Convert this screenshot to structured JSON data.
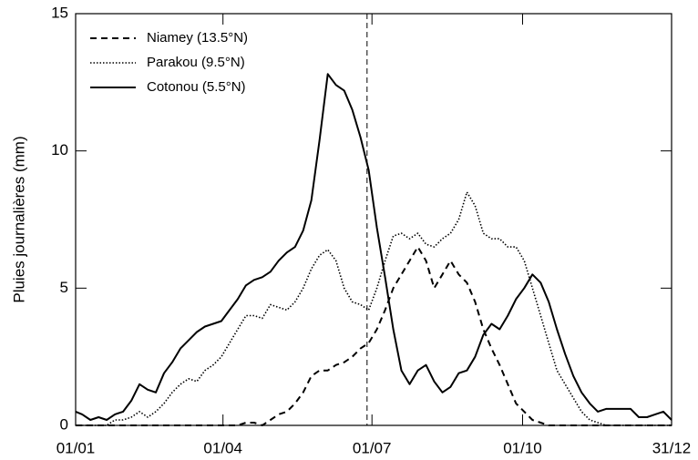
{
  "chart_data": {
    "type": "line",
    "ylabel": "Pluies journalières (mm)",
    "x": [
      1,
      5,
      10,
      15,
      20,
      25,
      30,
      35,
      40,
      45,
      50,
      55,
      60,
      65,
      70,
      75,
      80,
      85,
      90,
      95,
      100,
      105,
      110,
      115,
      120,
      125,
      130,
      135,
      140,
      145,
      150,
      155,
      160,
      165,
      170,
      175,
      180,
      185,
      190,
      195,
      200,
      205,
      210,
      215,
      220,
      225,
      230,
      235,
      240,
      245,
      250,
      255,
      260,
      265,
      270,
      275,
      280,
      285,
      290,
      295,
      300,
      305,
      310,
      315,
      320,
      325,
      330,
      335,
      340,
      345,
      350,
      355,
      360,
      365
    ],
    "series": [
      {
        "name": "Niamey (13.5°N)",
        "color": "#000000",
        "dash": "dashed",
        "values": [
          0,
          0,
          0,
          0,
          0,
          0,
          0,
          0,
          0,
          0,
          0,
          0,
          0,
          0,
          0,
          0,
          0,
          0,
          0,
          0,
          0,
          0.1,
          0.1,
          0,
          0.2,
          0.4,
          0.5,
          0.8,
          1.2,
          1.8,
          2,
          2,
          2.2,
          2.3,
          2.5,
          2.8,
          3,
          3.5,
          4.2,
          5,
          5.5,
          6,
          6.5,
          6,
          5,
          5.5,
          6,
          5.5,
          5.2,
          4.5,
          3.5,
          2.8,
          2.2,
          1.5,
          0.8,
          0.5,
          0.2,
          0.1,
          0,
          0,
          0,
          0,
          0,
          0,
          0,
          0,
          0,
          0,
          0,
          0,
          0,
          0,
          0,
          0
        ]
      },
      {
        "name": "Parakou (9.5°N)",
        "color": "#000000",
        "dash": "dotted",
        "values": [
          0,
          0,
          0,
          0,
          0,
          0.2,
          0.2,
          0.3,
          0.5,
          0.3,
          0.5,
          0.8,
          1.2,
          1.5,
          1.7,
          1.6,
          2,
          2.2,
          2.5,
          3,
          3.5,
          4,
          4,
          3.9,
          4.4,
          4.3,
          4.2,
          4.5,
          5,
          5.7,
          6.2,
          6.4,
          6,
          5,
          4.5,
          4.4,
          4.2,
          5,
          6,
          6.9,
          7,
          6.8,
          7,
          6.6,
          6.5,
          6.8,
          7,
          7.5,
          8.5,
          8,
          7,
          6.8,
          6.8,
          6.5,
          6.5,
          6,
          5,
          4,
          3,
          2,
          1.5,
          1,
          0.5,
          0.2,
          0.1,
          0,
          0,
          0,
          0,
          0,
          0,
          0,
          0,
          0
        ]
      },
      {
        "name": "Cotonou (5.5°N)",
        "color": "#000000",
        "dash": "solid",
        "values": [
          0.5,
          0.4,
          0.2,
          0.3,
          0.2,
          0.4,
          0.5,
          0.9,
          1.5,
          1.3,
          1.2,
          1.9,
          2.3,
          2.8,
          3.1,
          3.4,
          3.6,
          3.7,
          3.8,
          4.2,
          4.6,
          5.1,
          5.3,
          5.4,
          5.6,
          6,
          6.3,
          6.5,
          7.1,
          8.2,
          10.4,
          12.8,
          12.4,
          12.2,
          11.5,
          10.5,
          9.3,
          7.2,
          5.4,
          3.5,
          2,
          1.5,
          2,
          2.2,
          1.6,
          1.2,
          1.4,
          1.9,
          2,
          2.5,
          3.3,
          3.7,
          3.5,
          4,
          4.6,
          5,
          5.5,
          5.2,
          4.5,
          3.5,
          2.6,
          1.8,
          1.2,
          0.8,
          0.5,
          0.6,
          0.6,
          0.6,
          0.6,
          0.3,
          0.3,
          0.4,
          0.5,
          0.2
        ]
      }
    ],
    "xlim": [
      1,
      365
    ],
    "xticks": [
      {
        "value": 1,
        "label": "01/01"
      },
      {
        "value": 91,
        "label": "01/04"
      },
      {
        "value": 182,
        "label": "01/07"
      },
      {
        "value": 274,
        "label": "01/10"
      },
      {
        "value": 365,
        "label": "31/12"
      }
    ],
    "ylim": [
      0,
      15
    ],
    "yticks": [
      0,
      5,
      10,
      15
    ],
    "vline_x": 179,
    "legend": "upper left"
  }
}
